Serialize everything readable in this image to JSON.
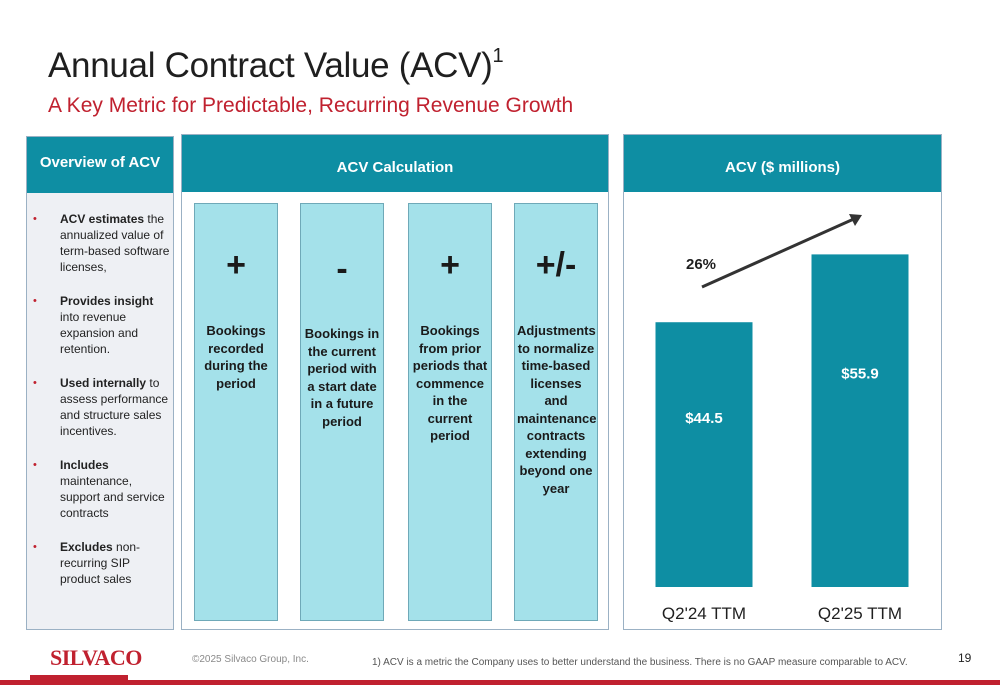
{
  "header": {
    "title": "Annual Contract Value (ACV)",
    "title_superscript": "1",
    "subtitle": "A Key Metric for Predictable, Recurring Revenue Growth"
  },
  "overview": {
    "heading": "Overview of ACV",
    "items": [
      {
        "bold": "ACV estimates",
        "text": " the annualized value of term-based software licenses,"
      },
      {
        "bold": "Provides insight",
        "text": " into revenue expansion and retention."
      },
      {
        "bold": "Used internally",
        "text": " to assess performance and structure sales incentives."
      },
      {
        "bold": "Includes",
        "text": " maintenance, support and service contracts"
      },
      {
        "bold": "Excludes",
        "text": " non-recurring SIP product sales"
      }
    ]
  },
  "calculation": {
    "heading": "ACV Calculation",
    "columns": [
      {
        "operator": "+",
        "text": "Bookings recorded during the period"
      },
      {
        "operator": "-",
        "text": "Bookings in the current period with a start date in a future period"
      },
      {
        "operator": "+",
        "text": "Bookings from prior periods that commence in the current period"
      },
      {
        "operator": "+/-",
        "text": "Adjustments to normalize time-based licenses and maintenance contracts extending beyond one year"
      }
    ]
  },
  "chart_data": {
    "type": "bar",
    "title": "ACV ($ millions)",
    "categories": [
      "Q2'24 TTM",
      "Q2'25 TTM"
    ],
    "values": [
      44.5,
      55.9
    ],
    "value_labels": [
      "$44.5",
      "$55.9"
    ],
    "growth_label": "26%",
    "ylim": [
      0,
      60
    ],
    "color": "#0e8ea3",
    "grid": false,
    "legend": "none"
  },
  "footer": {
    "logo": "SILVACO",
    "copyright": "©2025 Silvaco Group, Inc.",
    "footnote": "1)  ACV is a metric the Company uses to better understand the business. There is no GAAP measure comparable to ACV.",
    "page_number": "19"
  },
  "colors": {
    "accent_red": "#c0212f",
    "teal": "#0e8ea3",
    "light_teal": "#a4e1ea"
  }
}
